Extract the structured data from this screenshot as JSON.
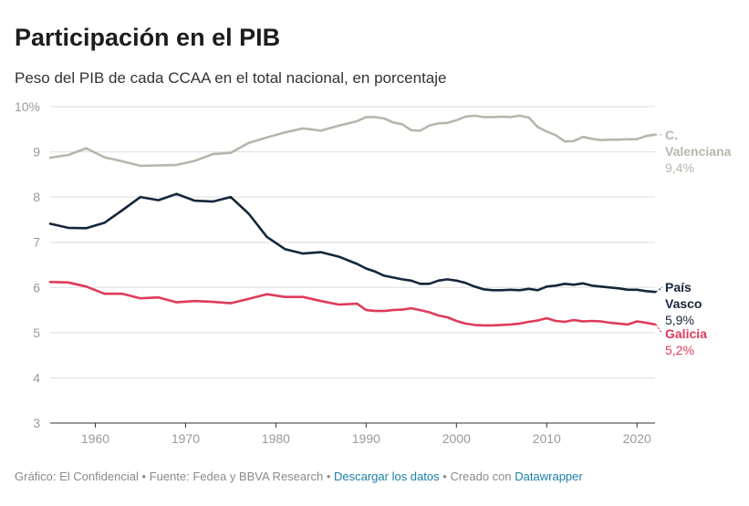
{
  "title": "Participación en el PIB",
  "subtitle": "Peso del PIB de cada CCAA en el total nacional, en porcentaje",
  "footer": {
    "credit": "Gráfico: El Confidencial",
    "source": "Fuente: Fedea y BBVA Research",
    "download": "Descargar los datos",
    "created": "Creado con",
    "tool": "Datawrapper",
    "sep": "•"
  },
  "colors": {
    "valenciana": "#b8b6ab",
    "vasco": "#15263a",
    "galicia": "#e03a5a",
    "grid": "#dddddd"
  },
  "chart_data": {
    "type": "line",
    "ylim": [
      3,
      10
    ],
    "xlim": [
      1955,
      2022
    ],
    "yticks": [
      {
        "value": 10,
        "label": "10%"
      },
      {
        "value": 9,
        "label": "9"
      },
      {
        "value": 8,
        "label": "8"
      },
      {
        "value": 7,
        "label": "7"
      },
      {
        "value": 6,
        "label": "6"
      },
      {
        "value": 5,
        "label": "5"
      },
      {
        "value": 4,
        "label": "4"
      },
      {
        "value": 3,
        "label": "3"
      }
    ],
    "xticks": [
      {
        "value": 1960,
        "label": "1960"
      },
      {
        "value": 1970,
        "label": "1970"
      },
      {
        "value": 1980,
        "label": "1980"
      },
      {
        "value": 1990,
        "label": "1990"
      },
      {
        "value": 2000,
        "label": "2000"
      },
      {
        "value": 2010,
        "label": "2010"
      },
      {
        "value": 2020,
        "label": "2020"
      }
    ],
    "series": [
      {
        "key": "valenciana",
        "label_lines": [
          "C.",
          "Valenciana"
        ],
        "value_label": "9,4%",
        "x": [
          1955,
          1957,
          1959,
          1960,
          1961,
          1963,
          1965,
          1967,
          1969,
          1971,
          1973,
          1975,
          1977,
          1979,
          1981,
          1983,
          1985,
          1987,
          1989,
          1990,
          1991,
          1992,
          1993,
          1994,
          1995,
          1996,
          1997,
          1998,
          1999,
          2000,
          2001,
          2002,
          2003,
          2004,
          2005,
          2006,
          2007,
          2008,
          2009,
          2010,
          2011,
          2012,
          2013,
          2014,
          2015,
          2016,
          2017,
          2018,
          2019,
          2020,
          2021,
          2022
        ],
        "y": [
          8.87,
          8.93,
          9.08,
          8.98,
          8.88,
          8.79,
          8.69,
          8.7,
          8.71,
          8.8,
          8.95,
          8.98,
          9.2,
          9.32,
          9.43,
          9.52,
          9.47,
          9.58,
          9.68,
          9.77,
          9.77,
          9.74,
          9.65,
          9.61,
          9.48,
          9.47,
          9.58,
          9.63,
          9.64,
          9.7,
          9.78,
          9.8,
          9.77,
          9.77,
          9.78,
          9.77,
          9.8,
          9.76,
          9.55,
          9.45,
          9.37,
          9.23,
          9.24,
          9.33,
          9.29,
          9.26,
          9.27,
          9.27,
          9.28,
          9.28,
          9.35,
          9.38
        ]
      },
      {
        "key": "vasco",
        "label_lines": [
          "País",
          "Vasco"
        ],
        "value_label": "5,9%",
        "x": [
          1955,
          1957,
          1959,
          1961,
          1963,
          1965,
          1967,
          1969,
          1971,
          1973,
          1975,
          1977,
          1979,
          1981,
          1983,
          1985,
          1987,
          1989,
          1990,
          1991,
          1992,
          1993,
          1994,
          1995,
          1996,
          1997,
          1998,
          1999,
          2000,
          2001,
          2002,
          2003,
          2004,
          2005,
          2006,
          2007,
          2008,
          2009,
          2010,
          2011,
          2012,
          2013,
          2014,
          2015,
          2016,
          2017,
          2018,
          2019,
          2020,
          2021,
          2022
        ],
        "y": [
          7.41,
          7.32,
          7.31,
          7.43,
          7.71,
          8.0,
          7.93,
          8.07,
          7.92,
          7.9,
          8.0,
          7.63,
          7.12,
          6.85,
          6.75,
          6.78,
          6.68,
          6.52,
          6.42,
          6.35,
          6.26,
          6.22,
          6.18,
          6.15,
          6.08,
          6.08,
          6.15,
          6.18,
          6.15,
          6.1,
          6.02,
          5.96,
          5.94,
          5.94,
          5.95,
          5.94,
          5.97,
          5.94,
          6.02,
          6.04,
          6.08,
          6.06,
          6.09,
          6.04,
          6.02,
          6.0,
          5.98,
          5.95,
          5.95,
          5.92,
          5.9
        ]
      },
      {
        "key": "galicia",
        "label_lines": [
          "Galicia"
        ],
        "value_label": "5,2%",
        "x": [
          1955,
          1957,
          1959,
          1961,
          1963,
          1965,
          1967,
          1969,
          1971,
          1973,
          1975,
          1977,
          1979,
          1981,
          1983,
          1985,
          1987,
          1989,
          1990,
          1991,
          1992,
          1993,
          1994,
          1995,
          1996,
          1997,
          1998,
          1999,
          2000,
          2001,
          2002,
          2003,
          2004,
          2005,
          2006,
          2007,
          2008,
          2009,
          2010,
          2011,
          2012,
          2013,
          2014,
          2015,
          2016,
          2017,
          2018,
          2019,
          2020,
          2021,
          2022
        ],
        "y": [
          6.12,
          6.11,
          6.02,
          5.86,
          5.86,
          5.76,
          5.78,
          5.67,
          5.7,
          5.68,
          5.65,
          5.75,
          5.85,
          5.79,
          5.79,
          5.7,
          5.62,
          5.64,
          5.5,
          5.48,
          5.48,
          5.5,
          5.51,
          5.54,
          5.5,
          5.45,
          5.38,
          5.34,
          5.26,
          5.2,
          5.17,
          5.16,
          5.16,
          5.17,
          5.18,
          5.2,
          5.24,
          5.27,
          5.32,
          5.26,
          5.24,
          5.28,
          5.25,
          5.26,
          5.25,
          5.22,
          5.2,
          5.18,
          5.25,
          5.22,
          5.18
        ]
      }
    ]
  }
}
